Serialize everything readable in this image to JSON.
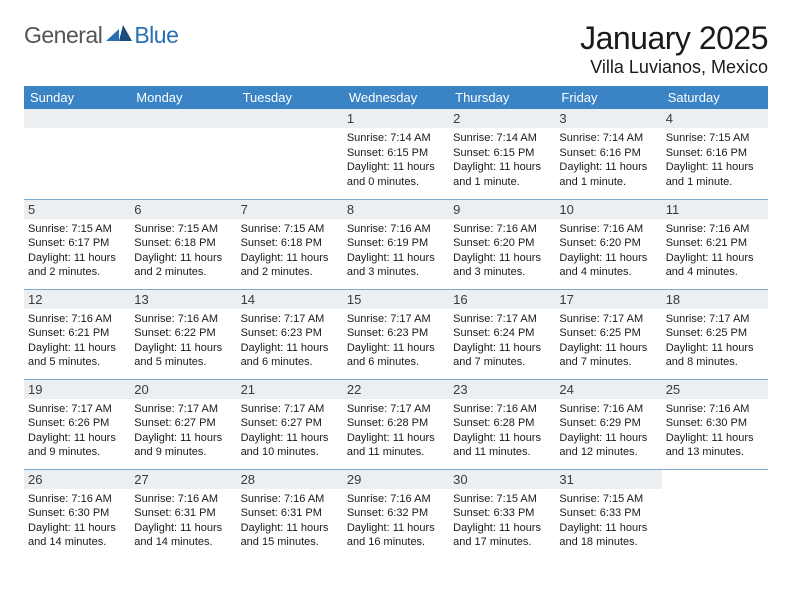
{
  "logo": {
    "general": "General",
    "blue": "Blue"
  },
  "title": "January 2025",
  "location": "Villa Luvianos, Mexico",
  "colors": {
    "header_bg": "#3a83c5",
    "header_fg": "#ffffff",
    "daynum_bg": "#eceff1",
    "row_border": "#7da9cf",
    "logo_blue": "#2b6fb3",
    "logo_dark": "#1d4d80"
  },
  "day_headers": [
    "Sunday",
    "Monday",
    "Tuesday",
    "Wednesday",
    "Thursday",
    "Friday",
    "Saturday"
  ],
  "weeks": [
    [
      null,
      null,
      null,
      {
        "n": "1",
        "sr": "7:14 AM",
        "ss": "6:15 PM",
        "dl": "11 hours and 0 minutes."
      },
      {
        "n": "2",
        "sr": "7:14 AM",
        "ss": "6:15 PM",
        "dl": "11 hours and 1 minute."
      },
      {
        "n": "3",
        "sr": "7:14 AM",
        "ss": "6:16 PM",
        "dl": "11 hours and 1 minute."
      },
      {
        "n": "4",
        "sr": "7:15 AM",
        "ss": "6:16 PM",
        "dl": "11 hours and 1 minute."
      }
    ],
    [
      {
        "n": "5",
        "sr": "7:15 AM",
        "ss": "6:17 PM",
        "dl": "11 hours and 2 minutes."
      },
      {
        "n": "6",
        "sr": "7:15 AM",
        "ss": "6:18 PM",
        "dl": "11 hours and 2 minutes."
      },
      {
        "n": "7",
        "sr": "7:15 AM",
        "ss": "6:18 PM",
        "dl": "11 hours and 2 minutes."
      },
      {
        "n": "8",
        "sr": "7:16 AM",
        "ss": "6:19 PM",
        "dl": "11 hours and 3 minutes."
      },
      {
        "n": "9",
        "sr": "7:16 AM",
        "ss": "6:20 PM",
        "dl": "11 hours and 3 minutes."
      },
      {
        "n": "10",
        "sr": "7:16 AM",
        "ss": "6:20 PM",
        "dl": "11 hours and 4 minutes."
      },
      {
        "n": "11",
        "sr": "7:16 AM",
        "ss": "6:21 PM",
        "dl": "11 hours and 4 minutes."
      }
    ],
    [
      {
        "n": "12",
        "sr": "7:16 AM",
        "ss": "6:21 PM",
        "dl": "11 hours and 5 minutes."
      },
      {
        "n": "13",
        "sr": "7:16 AM",
        "ss": "6:22 PM",
        "dl": "11 hours and 5 minutes."
      },
      {
        "n": "14",
        "sr": "7:17 AM",
        "ss": "6:23 PM",
        "dl": "11 hours and 6 minutes."
      },
      {
        "n": "15",
        "sr": "7:17 AM",
        "ss": "6:23 PM",
        "dl": "11 hours and 6 minutes."
      },
      {
        "n": "16",
        "sr": "7:17 AM",
        "ss": "6:24 PM",
        "dl": "11 hours and 7 minutes."
      },
      {
        "n": "17",
        "sr": "7:17 AM",
        "ss": "6:25 PM",
        "dl": "11 hours and 7 minutes."
      },
      {
        "n": "18",
        "sr": "7:17 AM",
        "ss": "6:25 PM",
        "dl": "11 hours and 8 minutes."
      }
    ],
    [
      {
        "n": "19",
        "sr": "7:17 AM",
        "ss": "6:26 PM",
        "dl": "11 hours and 9 minutes."
      },
      {
        "n": "20",
        "sr": "7:17 AM",
        "ss": "6:27 PM",
        "dl": "11 hours and 9 minutes."
      },
      {
        "n": "21",
        "sr": "7:17 AM",
        "ss": "6:27 PM",
        "dl": "11 hours and 10 minutes."
      },
      {
        "n": "22",
        "sr": "7:17 AM",
        "ss": "6:28 PM",
        "dl": "11 hours and 11 minutes."
      },
      {
        "n": "23",
        "sr": "7:16 AM",
        "ss": "6:28 PM",
        "dl": "11 hours and 11 minutes."
      },
      {
        "n": "24",
        "sr": "7:16 AM",
        "ss": "6:29 PM",
        "dl": "11 hours and 12 minutes."
      },
      {
        "n": "25",
        "sr": "7:16 AM",
        "ss": "6:30 PM",
        "dl": "11 hours and 13 minutes."
      }
    ],
    [
      {
        "n": "26",
        "sr": "7:16 AM",
        "ss": "6:30 PM",
        "dl": "11 hours and 14 minutes."
      },
      {
        "n": "27",
        "sr": "7:16 AM",
        "ss": "6:31 PM",
        "dl": "11 hours and 14 minutes."
      },
      {
        "n": "28",
        "sr": "7:16 AM",
        "ss": "6:31 PM",
        "dl": "11 hours and 15 minutes."
      },
      {
        "n": "29",
        "sr": "7:16 AM",
        "ss": "6:32 PM",
        "dl": "11 hours and 16 minutes."
      },
      {
        "n": "30",
        "sr": "7:15 AM",
        "ss": "6:33 PM",
        "dl": "11 hours and 17 minutes."
      },
      {
        "n": "31",
        "sr": "7:15 AM",
        "ss": "6:33 PM",
        "dl": "11 hours and 18 minutes."
      },
      null
    ]
  ],
  "labels": {
    "sunrise": "Sunrise:",
    "sunset": "Sunset:",
    "daylight": "Daylight:"
  }
}
